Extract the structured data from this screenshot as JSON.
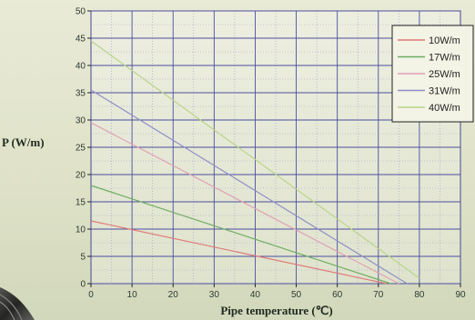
{
  "chart_data": {
    "type": "line",
    "title": "",
    "xlabel": "Pipe temperature (℃)",
    "ylabel": "P (W/m)",
    "xlim": [
      0,
      90
    ],
    "ylim": [
      0,
      50
    ],
    "xticks": [
      0,
      10,
      20,
      30,
      40,
      50,
      60,
      70,
      80,
      90
    ],
    "yticks": [
      0,
      5,
      10,
      15,
      20,
      25,
      30,
      35,
      40,
      45,
      50
    ],
    "grid": true,
    "legend_position": "top-right",
    "series": [
      {
        "name": "10W/m",
        "color": "#e07a7a",
        "points": [
          [
            0,
            11.5
          ],
          [
            72,
            0
          ]
        ]
      },
      {
        "name": "17W/m",
        "color": "#6fae63",
        "points": [
          [
            0,
            18
          ],
          [
            73,
            0
          ]
        ]
      },
      {
        "name": "25W/m",
        "color": "#e0a0b4",
        "points": [
          [
            0,
            29.5
          ],
          [
            75,
            0
          ]
        ]
      },
      {
        "name": "31W/m",
        "color": "#8e8ec8",
        "points": [
          [
            0,
            35.5
          ],
          [
            77,
            0
          ]
        ]
      },
      {
        "name": "40W/m",
        "color": "#b9d48a",
        "points": [
          [
            0,
            44.5
          ],
          [
            80,
            1
          ]
        ]
      }
    ]
  }
}
